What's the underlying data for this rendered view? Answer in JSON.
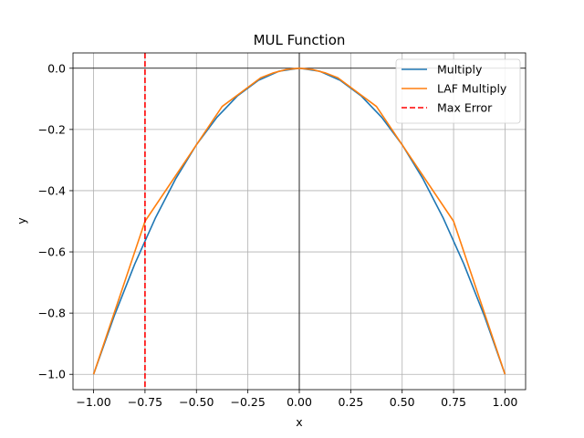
{
  "chart_data": {
    "type": "line",
    "title": "MUL Function",
    "xlabel": "x",
    "ylabel": "y",
    "xlim": [
      -1.1,
      1.1
    ],
    "ylim": [
      -1.05,
      0.05
    ],
    "xticks": [
      -1.0,
      -0.75,
      -0.5,
      -0.25,
      0.0,
      0.25,
      0.5,
      0.75,
      1.0
    ],
    "xtick_labels": [
      "−1.00",
      "−0.75",
      "−0.50",
      "−0.25",
      "0.00",
      "0.25",
      "0.50",
      "0.75",
      "1.00"
    ],
    "yticks": [
      0.0,
      -0.2,
      -0.4,
      -0.6,
      -0.8,
      -1.0
    ],
    "ytick_labels": [
      "0.0",
      "−0.2",
      "−0.4",
      "−0.6",
      "−0.8",
      "−1.0"
    ],
    "grid": true,
    "reference_lines": {
      "x": 0,
      "y": 0
    },
    "legend_position": "top-right",
    "series": [
      {
        "name": "Multiply",
        "color": "#1f77b4",
        "style": "solid",
        "x": [
          -1.0,
          -0.9,
          -0.8,
          -0.7,
          -0.6,
          -0.5,
          -0.4,
          -0.3,
          -0.2,
          -0.1,
          0.0,
          0.1,
          0.2,
          0.3,
          0.4,
          0.5,
          0.6,
          0.7,
          0.8,
          0.9,
          1.0
        ],
        "y": [
          -1.0,
          -0.81,
          -0.64,
          -0.49,
          -0.36,
          -0.25,
          -0.16,
          -0.09,
          -0.04,
          -0.01,
          0.0,
          -0.01,
          -0.04,
          -0.09,
          -0.16,
          -0.25,
          -0.36,
          -0.49,
          -0.64,
          -0.81,
          -1.0
        ]
      },
      {
        "name": "LAF Multiply",
        "color": "#ff7f0e",
        "style": "solid",
        "x": [
          -1.0,
          -0.75,
          -0.5,
          -0.375,
          -0.25,
          -0.1875,
          -0.125,
          -0.0625,
          0.0,
          0.0625,
          0.125,
          0.1875,
          0.25,
          0.375,
          0.5,
          0.75,
          1.0
        ],
        "y": [
          -1.0,
          -0.5,
          -0.25,
          -0.125,
          -0.0625,
          -0.03125,
          -0.015,
          -0.004,
          0.0,
          -0.004,
          -0.015,
          -0.03125,
          -0.0625,
          -0.125,
          -0.25,
          -0.5,
          -1.0
        ]
      }
    ],
    "vertical_lines": [
      {
        "name": "Max Error",
        "x": -0.75,
        "color": "#ff0000",
        "style": "dashed"
      }
    ]
  }
}
